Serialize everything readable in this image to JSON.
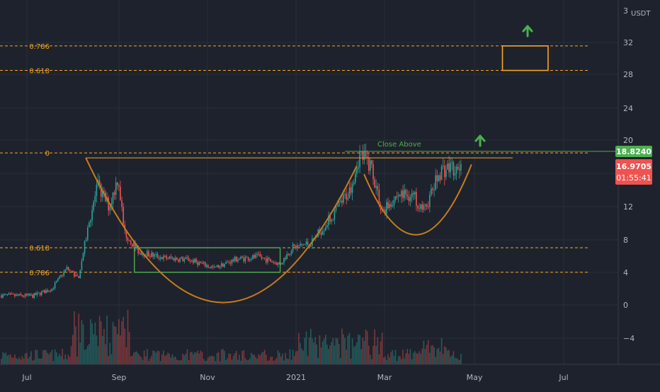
{
  "chart_data": {
    "type": "candlestick",
    "currency": "USDT",
    "price_ticks": [
      "3",
      "32",
      "28",
      "24",
      "20",
      "16",
      "12",
      "8",
      "4",
      "0",
      "−4"
    ],
    "time_ticks": [
      "Jul",
      "Sep",
      "Nov",
      "2021",
      "Mar",
      "May",
      "Jul"
    ],
    "last_price": "16.9705",
    "countdown": "01:55:41",
    "level_price": "18.8240",
    "annotation": "Close Above",
    "fib_levels": [
      {
        "label": "0.786",
        "value": 31.7
      },
      {
        "label": "0.618",
        "value": 28.7
      },
      {
        "label": "0",
        "value": 18.6
      },
      {
        "label": "0.618",
        "value": 7.0
      },
      {
        "label": "0.786",
        "value": 4.0
      }
    ],
    "target_box": {
      "from": "2021-05-20",
      "to": "2021-06-20",
      "low": 28.7,
      "high": 31.7
    },
    "consolidation_box": {
      "from": "2020-09-12",
      "to": "2020-12-20",
      "low": 4.0,
      "high": 7.0
    },
    "resistance_line": {
      "from": "2021-02-02",
      "to": "2021-05-27",
      "value": 18.8
    },
    "cup_curve": {
      "from": "2020-08-10",
      "to": "2021-02-10",
      "left_rim": 18.0,
      "bottom": 0.3,
      "right_rim": 17.0
    },
    "handle_curve": {
      "from": "2021-02-15",
      "to": "2021-04-29",
      "left_rim": 16.0,
      "bottom": 8.6,
      "right_rim": 17.2
    },
    "colors": {
      "up": "#26a69a",
      "down": "#ef5350",
      "fib": "#f5a623",
      "curve": "#c77c1e",
      "box_green": "#4caf50",
      "level_tag": "#4caf50",
      "price_tag": "#ef5350",
      "arrow": "#4caf50"
    }
  }
}
